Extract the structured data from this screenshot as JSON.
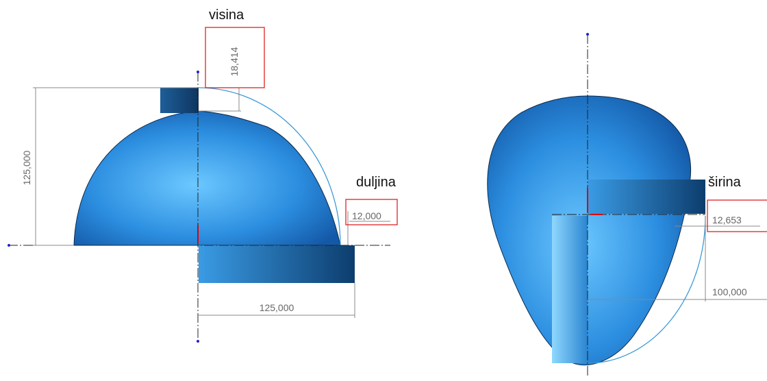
{
  "left_view": {
    "height_label": "visina",
    "height_dim": "18,414",
    "total_height_dim": "125,000",
    "length_label": "duljina",
    "length_dim": "12,000",
    "radius_dim": "125,000"
  },
  "right_view": {
    "width_label": "širina",
    "width_dim": "12,653",
    "radius_dim": "100,000"
  }
}
